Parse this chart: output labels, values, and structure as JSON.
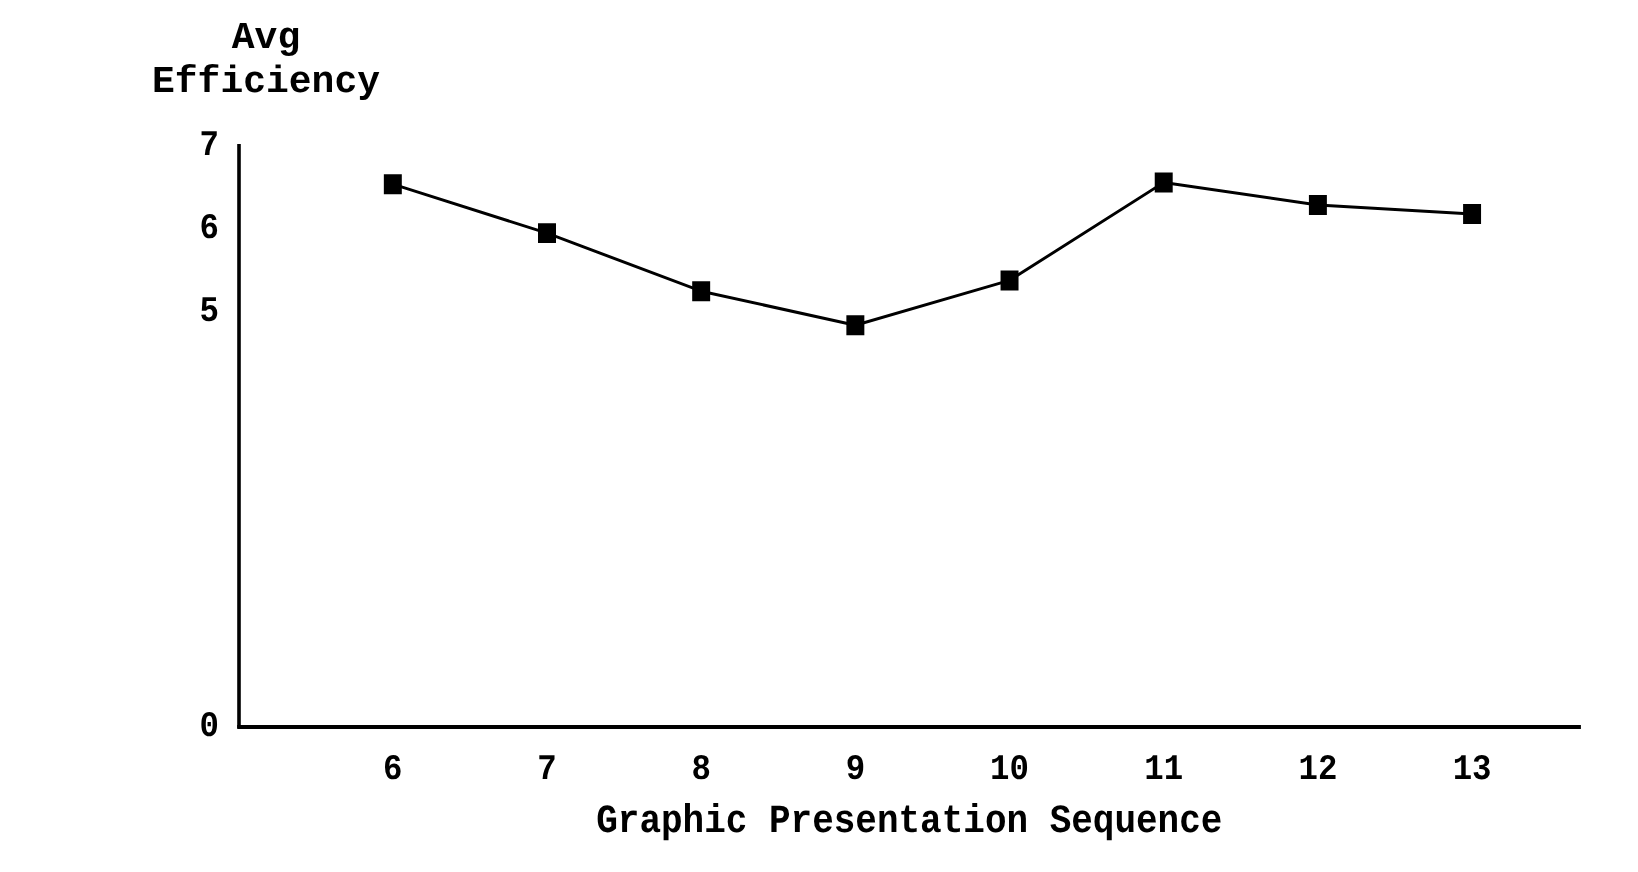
{
  "chart_data": {
    "type": "line",
    "xlabel": "Graphic Presentation Sequence",
    "ylabel": "Avg Efficiency",
    "x": [
      6,
      7,
      8,
      9,
      10,
      11,
      12,
      13
    ],
    "series": [
      {
        "color": "#000000",
        "values": [
          6.54,
          5.95,
          5.25,
          4.84,
          5.38,
          6.56,
          6.29,
          6.18
        ]
      }
    ],
    "xlim": [
      5,
      13.7
    ],
    "xticks": [
      6,
      7,
      8,
      9,
      10,
      11,
      12,
      13
    ],
    "ylim": [
      0,
      7
    ],
    "yticks": [
      0,
      5,
      6,
      7
    ],
    "marker": "square",
    "line_style": "solid",
    "grid": false,
    "legend": false
  }
}
